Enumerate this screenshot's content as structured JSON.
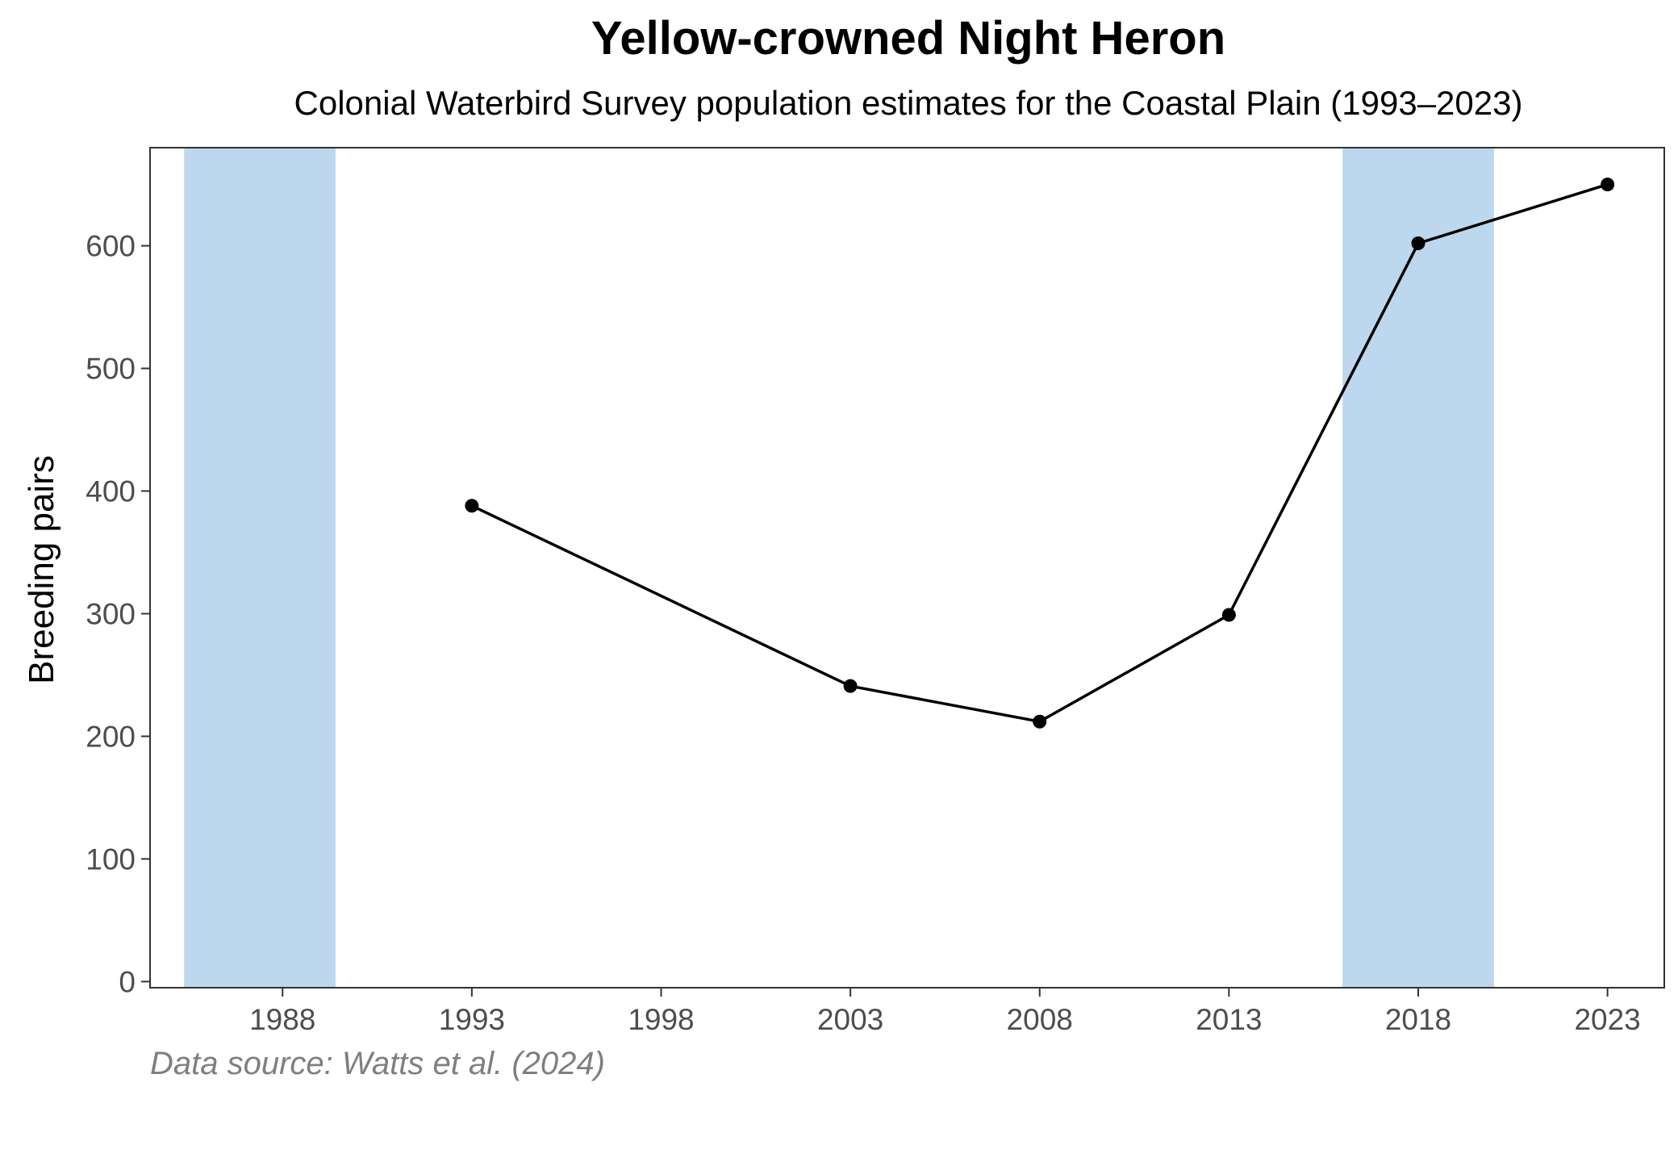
{
  "chart_data": {
    "type": "line",
    "title": "Yellow-crowned Night Heron",
    "subtitle": "Colonial Waterbird Survey population estimates for the Coastal Plain (1993–2023)",
    "xlabel": "",
    "ylabel": "Breeding pairs",
    "caption": "Data source: Watts et al. (2024)",
    "xlim": [
      1984.5,
      2024.5
    ],
    "ylim": [
      -5,
      680
    ],
    "x_ticks": [
      1988,
      1993,
      1998,
      2003,
      2008,
      2013,
      2018,
      2023
    ],
    "y_ticks": [
      0,
      100,
      200,
      300,
      400,
      500,
      600
    ],
    "x": [
      1993,
      2003,
      2008,
      2013,
      2018,
      2023
    ],
    "values": [
      388,
      241,
      212,
      299,
      602,
      650
    ],
    "shaded_bands": [
      {
        "from": 1985.4,
        "to": 1989.4
      },
      {
        "from": 2016.0,
        "to": 2020.0
      }
    ],
    "colors": {
      "line": "#000000",
      "band": "#bdd7ee",
      "frame": "#333333"
    },
    "grid": false,
    "legend": "none"
  }
}
